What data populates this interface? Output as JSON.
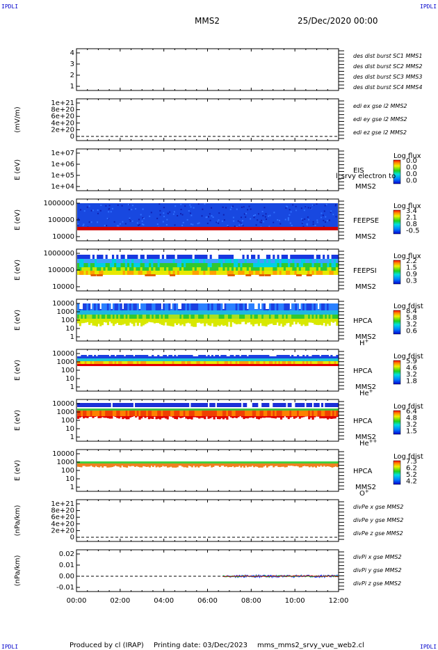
{
  "header": {
    "corner_tl": "IPDLI",
    "corner_tr": "IPDLI",
    "corner_bl": "IPDLI",
    "corner_br": "IPDLI",
    "spacecraft": "MMS2",
    "date": "25/Dec/2020 00:00"
  },
  "footer": {
    "produced": "Produced by cl (IRAP)",
    "printing": "Printing date: 03/Dec/2023",
    "script": "mms_mms2_srvy_vue_web2.cl"
  },
  "time_axis": {
    "ticks": [
      "00:00",
      "02:00",
      "04:00",
      "06:00",
      "08:00",
      "10:00",
      "12:00"
    ],
    "range_hours": [
      0,
      12
    ]
  },
  "panels": [
    {
      "id": "burst",
      "ylabel": "",
      "yticks": [
        "4",
        "3",
        "2",
        "1"
      ],
      "labels": [
        {
          "text": "des dist burst SC1 MMS1",
          "color": "#0000cc"
        },
        {
          "text": "des dist burst SC2 MMS2",
          "color": "#cc00cc"
        },
        {
          "text": "des dist burst SC3 MMS3",
          "color": "#cc0000"
        },
        {
          "text": "des dist burst SC4 MMS4",
          "color": "#00aa00"
        }
      ]
    },
    {
      "id": "edi",
      "ylabel": "(mV/m)",
      "yticks": [
        "1e+21",
        "8e+20",
        "6e+20",
        "4e+20",
        "2e+20",
        "0"
      ],
      "labels": [
        {
          "text": "edi ex gse l2 MMS2",
          "color": "#cc0000"
        },
        {
          "text": "edi ey gse l2 MMS2",
          "color": "#00aa00"
        },
        {
          "text": "edi ez gse l2 MMS2",
          "color": "#0000cc"
        }
      ]
    },
    {
      "id": "eis",
      "ylabel": "E (eV)",
      "yticks": [
        "1e+07",
        "1e+06",
        "1e+05",
        "1e+04"
      ],
      "instrument": "EIS",
      "sc": "MMS2",
      "overlay": "l_srvy electron to",
      "cbar_title": "Log flux",
      "cbar_ticks": [
        "0.0",
        "0.0",
        "0.0",
        "0.0"
      ]
    },
    {
      "id": "feepse",
      "ylabel": "E (eV)",
      "yticks": [
        "1000000",
        "100000",
        "10000"
      ],
      "instrument": "FEEPSE",
      "sc": "MMS2",
      "cbar_title": "Log flux",
      "cbar_ticks": [
        "3.4",
        "2.1",
        "0.8",
        "-0.5"
      ]
    },
    {
      "id": "feepsi",
      "ylabel": "E (eV)",
      "yticks": [
        "1000000",
        "100000",
        "10000"
      ],
      "instrument": "FEEPSI",
      "sc": "MMS2",
      "cbar_title": "Log flux",
      "cbar_ticks": [
        "2.2",
        "1.5",
        "0.9",
        "0.3"
      ]
    },
    {
      "id": "hpca_h",
      "ylabel": "E (eV)",
      "yticks": [
        "10000",
        "1000",
        "100",
        "10",
        "1"
      ],
      "instrument": "HPCA",
      "sc": "MMS2",
      "species": "H",
      "species_sup": "+",
      "cbar_title": "Log fdist",
      "cbar_ticks": [
        "8.4",
        "5.8",
        "3.2",
        "0.6"
      ]
    },
    {
      "id": "hpca_he",
      "ylabel": "E (eV)",
      "yticks": [
        "10000",
        "1000",
        "100",
        "10",
        "1"
      ],
      "instrument": "HPCA",
      "sc": "MMS2",
      "species": "He",
      "species_sup": "+",
      "cbar_title": "Log fdist",
      "cbar_ticks": [
        "5.9",
        "4.6",
        "3.2",
        "1.8"
      ]
    },
    {
      "id": "hpca_hepp",
      "ylabel": "E (eV)",
      "yticks": [
        "10000",
        "1000",
        "100",
        "10",
        "1"
      ],
      "instrument": "HPCA",
      "sc": "MMS2",
      "species": "He",
      "species_sup": "++",
      "cbar_title": "Log fdist",
      "cbar_ticks": [
        "6.4",
        "4.8",
        "3.2",
        "1.5"
      ]
    },
    {
      "id": "hpca_o",
      "ylabel": "E (eV)",
      "yticks": [
        "10000",
        "1000",
        "100",
        "10",
        "1"
      ],
      "instrument": "HPCA",
      "sc": "MMS2",
      "species": "O",
      "species_sup": "+",
      "cbar_title": "Log fdist",
      "cbar_ticks": [
        "7.3",
        "6.2",
        "5.2",
        "4.2"
      ]
    },
    {
      "id": "divpe",
      "ylabel": "(nPa/km)",
      "yticks": [
        "1e+21",
        "8e+20",
        "6e+20",
        "4e+20",
        "2e+20",
        "0"
      ],
      "labels": [
        {
          "text": "divPe x gse MMS2",
          "color": "#cc0000"
        },
        {
          "text": "divPe y gse MMS2",
          "color": "#00aa00"
        },
        {
          "text": "divPe z gse MMS2",
          "color": "#0000cc"
        }
      ]
    },
    {
      "id": "divpi",
      "ylabel": "(nPa/km)",
      "yticks": [
        "0.02",
        "0.01",
        "0.00",
        "-0.01"
      ],
      "labels": [
        {
          "text": "divPi x gse MMS2",
          "color": "#cc0000"
        },
        {
          "text": "divPi y gse MMS2",
          "color": "#00aa00"
        },
        {
          "text": "divPi z gse MMS2",
          "color": "#0000cc"
        }
      ]
    }
  ],
  "chart_data": {
    "type": "heatmap",
    "title": "MMS2",
    "date": "25/Dec/2020 00:00",
    "x_range_hours": [
      0,
      12
    ],
    "spectrograms": [
      {
        "panel": "feepse",
        "band_log10E": [
          4.55,
          6.0
        ],
        "dominant": "blue",
        "bottom_edge_color": "red"
      },
      {
        "panel": "feepsi",
        "band_log10E": [
          4.55,
          5.6
        ],
        "dominant": "cyan-green-yellow"
      },
      {
        "panel": "hpca_h",
        "band_log10E": [
          1.3,
          4.3
        ],
        "dominant": "green-yellow"
      },
      {
        "panel": "hpca_he",
        "band_log10E": [
          3.0,
          4.2
        ],
        "dominant": "orange-yellow"
      },
      {
        "panel": "hpca_hepp",
        "band_log10E": [
          2.9,
          4.2
        ],
        "dominant": "orange-red"
      },
      {
        "panel": "hpca_o",
        "band_log10E": [
          2.8,
          3.3
        ],
        "dominant": "orange-green"
      }
    ],
    "lines": [
      {
        "panel": "divpi",
        "start_hours": 6.7,
        "end_hours": 12,
        "approx_value": 0.0
      }
    ]
  }
}
